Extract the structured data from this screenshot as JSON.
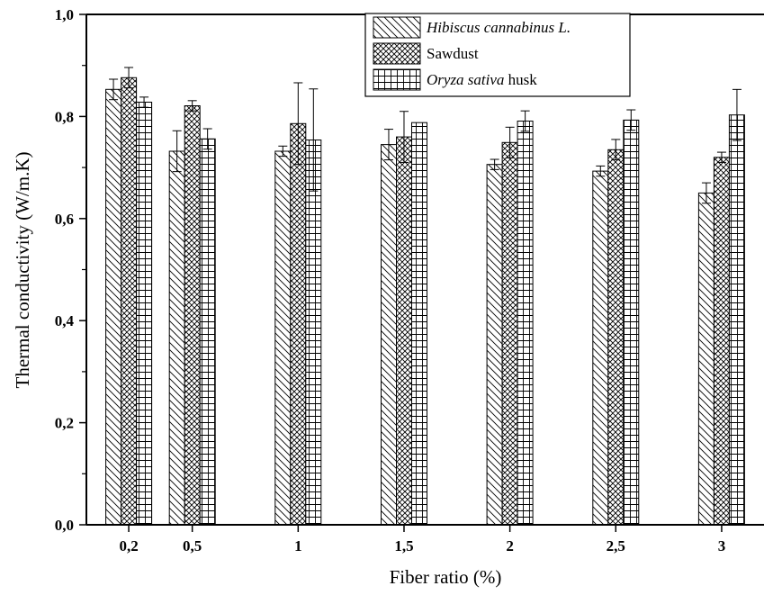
{
  "chart_data": {
    "type": "bar",
    "title": "",
    "xlabel": "Fiber ratio (%)",
    "ylabel": "Thermal conductivity (W/m.K)",
    "ylim": [
      0,
      1.0
    ],
    "yticks": [
      "0,0",
      "0,2",
      "0,4",
      "0,6",
      "0,8",
      "1,0"
    ],
    "categories": [
      "0,2",
      "0,5",
      "1",
      "1,5",
      "2",
      "2,5",
      "3"
    ],
    "category_positions": [
      0.2,
      0.5,
      1,
      1.5,
      2,
      2.5,
      3
    ],
    "xlim": [
      0,
      3.2
    ],
    "legend_position": "top-right",
    "grid": false,
    "error_bars": true,
    "series": [
      {
        "name": "Hibiscus cannabinus L.",
        "legend_italic": "Hibiscus cannabinus L.",
        "legend_plain": "",
        "pattern": "diagonal-hatch",
        "values": [
          0.853,
          0.732,
          0.732,
          0.745,
          0.706,
          0.693,
          0.65
        ],
        "errors": [
          0.02,
          0.04,
          0.01,
          0.03,
          0.01,
          0.01,
          0.02
        ]
      },
      {
        "name": "Sawdust",
        "legend_italic": "",
        "legend_plain": "Sawdust",
        "pattern": "crosshatch",
        "values": [
          0.876,
          0.821,
          0.786,
          0.76,
          0.749,
          0.735,
          0.72
        ],
        "errors": [
          0.02,
          0.01,
          0.08,
          0.05,
          0.03,
          0.02,
          0.01
        ]
      },
      {
        "name": "Oryza sativa husk",
        "legend_italic": "Oryza sativa",
        "legend_plain": " husk",
        "pattern": "grid",
        "values": [
          0.828,
          0.756,
          0.754,
          0.788,
          0.791,
          0.793,
          0.803
        ],
        "errors": [
          0.01,
          0.02,
          0.1,
          0.0,
          0.02,
          0.02,
          0.05
        ]
      }
    ]
  }
}
